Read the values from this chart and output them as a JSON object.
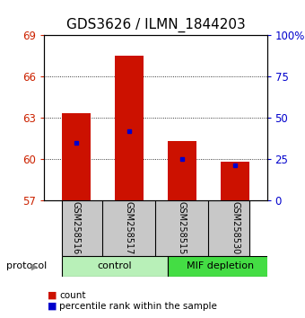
{
  "title": "GDS3626 / ILMN_1844203",
  "samples": [
    "GSM258516",
    "GSM258517",
    "GSM258515",
    "GSM258530"
  ],
  "groups": [
    {
      "name": "control",
      "color": "#b8f0b8"
    },
    {
      "name": "MIF depletion",
      "color": "#44dd44"
    }
  ],
  "bar_values": [
    63.3,
    67.5,
    61.3,
    59.8
  ],
  "percentile_values": [
    61.2,
    62.0,
    60.0,
    59.55
  ],
  "bar_bottom": 57,
  "ylim_left": [
    57,
    69
  ],
  "ylim_right": [
    0,
    100
  ],
  "yticks_left": [
    57,
    60,
    63,
    66,
    69
  ],
  "yticks_right": [
    0,
    25,
    50,
    75,
    100
  ],
  "ytick_labels_right": [
    "0",
    "25",
    "50",
    "75",
    "100%"
  ],
  "bar_color": "#cc1100",
  "percentile_color": "#0000cc",
  "bar_width": 0.55,
  "title_fontsize": 11,
  "tick_fontsize": 8.5,
  "label_color_left": "#cc2200",
  "label_color_right": "#0000cc",
  "sample_box_color": "#c8c8c8",
  "protocol_label": "protocol",
  "arrow_color": "#888888"
}
